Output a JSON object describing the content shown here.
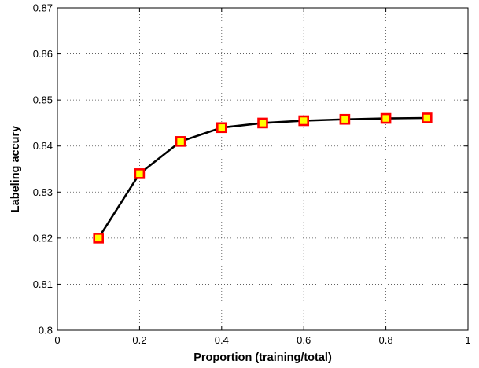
{
  "chart_data": {
    "type": "line",
    "title": "",
    "xlabel": "Proportion (training/total)",
    "ylabel": "Labeling accury",
    "xlim": [
      0,
      1
    ],
    "ylim": [
      0.8,
      0.87
    ],
    "xticks": [
      0,
      0.2,
      0.4,
      0.6,
      0.8,
      1
    ],
    "xtick_labels": [
      "0",
      "0.2",
      "0.4",
      "0.6",
      "0.8",
      "1"
    ],
    "yticks": [
      0.8,
      0.81,
      0.82,
      0.83,
      0.84,
      0.85,
      0.86,
      0.87
    ],
    "ytick_labels": [
      "0.8",
      "0.81",
      "0.82",
      "0.83",
      "0.84",
      "0.85",
      "0.86",
      "0.87"
    ],
    "grid": true,
    "series": [
      {
        "x": [
          0.1,
          0.2,
          0.3,
          0.4,
          0.5,
          0.6,
          0.7,
          0.8,
          0.9
        ],
        "y": [
          0.82,
          0.834,
          0.841,
          0.844,
          0.845,
          0.8455,
          0.8458,
          0.846,
          0.8461
        ],
        "line_color": "#000000",
        "marker": "square",
        "marker_edge_color": "#ff0000",
        "marker_face_color": "#ffff00"
      }
    ]
  }
}
